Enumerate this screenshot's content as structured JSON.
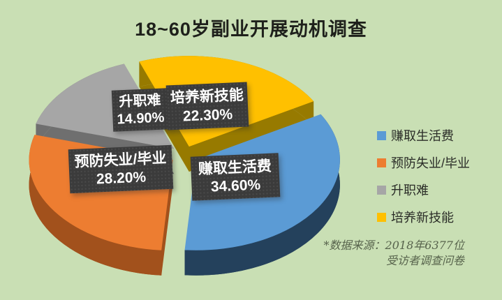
{
  "page": {
    "title": "18~60岁副业开展动机调查",
    "background_color": "#c9dfb4"
  },
  "chart_data": {
    "type": "pie",
    "style": "3d-exploded",
    "title": "18~60岁副业开展动机调查",
    "unit": "%",
    "start_angle_deg": 60,
    "legend_position": "right",
    "slices": [
      {
        "label": "赚取生活费",
        "value": 34.6,
        "pct_label": "34.60%",
        "color": "#5b9bd5",
        "side_color": "#24415c"
      },
      {
        "label": "预防失业/毕业",
        "value": 28.2,
        "pct_label": "28.20%",
        "color": "#ed7d31",
        "side_color": "#a2511c"
      },
      {
        "label": "升职难",
        "value": 14.9,
        "pct_label": "14.90%",
        "color": "#a6a6a6",
        "side_color": "#6f6f6f"
      },
      {
        "label": "培养新技能",
        "value": 22.3,
        "pct_label": "22.30%",
        "color": "#ffc000",
        "side_color": "#977a00"
      }
    ]
  },
  "footnote": {
    "line1": "*数据来源：2018年6377位",
    "line2": "受访者调查问卷"
  }
}
